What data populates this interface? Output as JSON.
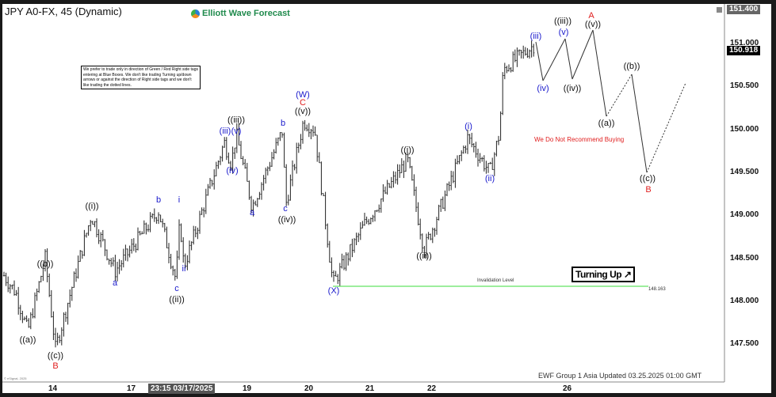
{
  "header": {
    "title": "JPY A0-FX, 45 (Dynamic)",
    "logo_text": "Elliott Wave Forecast"
  },
  "note": "We prefer to trade only in direction of Green / Red Right side tags entering at Blue Boxes. We don't like trading Turning up/down arrows or against the direction of Right side tags and we don't like trading the dotted lines.",
  "footer": {
    "updated": "EWF Group 1 Asia Updated 03.25.2025 01:00 GMT",
    "copyright": "© eSignal, 2025"
  },
  "annotations": {
    "turning_up": "Turning Up ↗",
    "invalidation_label": "Invalidation Level",
    "invalidation_value": "148.163",
    "no_buy": "We Do Not Recommend Buying"
  },
  "colors": {
    "blue": "#1a1acc",
    "black": "#111111",
    "red": "#e02020",
    "invalidation": "#7de87d",
    "price_tag": "#000000",
    "top_tag": "#666666"
  },
  "chart_data": {
    "type": "line",
    "title": "JPY A0-FX, 45 (Dynamic)",
    "y_ticks": [
      "151.000",
      "150.500",
      "150.000",
      "149.500",
      "149.000",
      "148.500",
      "148.000",
      "147.500"
    ],
    "ylim": [
      147.2,
      151.45
    ],
    "x_ticks": [
      "14",
      "17",
      "19",
      "20",
      "21",
      "22",
      "26"
    ],
    "x_cursor_label": "23:15 03/17/2025",
    "last_price": "150.918",
    "top_price": "151.400",
    "invalidation_level": 148.163,
    "pivots": [
      {
        "label": "((a))",
        "price": 147.7,
        "color": "black"
      },
      {
        "label": "((b))",
        "price": 148.5,
        "color": "black"
      },
      {
        "label": "((c))",
        "price": 147.45,
        "color": "black",
        "degree": "B"
      },
      {
        "label": "((i))",
        "price": 149.0,
        "color": "black"
      },
      {
        "label": "a",
        "price": 148.35,
        "color": "blue"
      },
      {
        "label": "b",
        "price": 149.05,
        "color": "blue"
      },
      {
        "label": "c",
        "price": 148.25,
        "color": "blue",
        "degree": "((ii))"
      },
      {
        "label": "i",
        "price": 149.0,
        "color": "blue"
      },
      {
        "label": "ii",
        "price": 148.35,
        "color": "blue"
      },
      {
        "label": "iii",
        "price": 149.85,
        "color": "blue"
      },
      {
        "label": "iv",
        "price": 149.6,
        "color": "blue"
      },
      {
        "label": "v",
        "price": 149.95,
        "color": "blue",
        "degree": "((iii))"
      },
      {
        "label": "a",
        "price": 149.1,
        "color": "blue"
      },
      {
        "label": "b",
        "price": 150.0,
        "color": "blue"
      },
      {
        "label": "c",
        "price": 149.1,
        "color": "blue",
        "degree": "((iv))"
      },
      {
        "label": "((v))",
        "price": 150.1,
        "color": "black",
        "degree": "C / (W)"
      },
      {
        "label": "(X)",
        "price": 148.2,
        "color": "blue"
      },
      {
        "label": "((i))",
        "price": 149.65,
        "color": "black"
      },
      {
        "label": "((ii))",
        "price": 148.6,
        "color": "black"
      },
      {
        "label": "(i)",
        "price": 149.9,
        "color": "blue"
      },
      {
        "label": "(ii)",
        "price": 149.5,
        "color": "blue"
      },
      {
        "label": "(iii)",
        "price": 151.05,
        "color": "blue"
      },
      {
        "label": "(iv)",
        "price": 150.6,
        "color": "blue",
        "projected": true
      },
      {
        "label": "(v)",
        "price": 151.05,
        "color": "blue",
        "projected": true,
        "degree": "((iii))"
      },
      {
        "label": "((iv))",
        "price": 150.6,
        "color": "black",
        "projected": true
      },
      {
        "label": "((v))",
        "price": 151.15,
        "color": "black",
        "projected": true,
        "degree": "A"
      },
      {
        "label": "((a))",
        "price": 150.15,
        "color": "black",
        "projected": true
      },
      {
        "label": "((b))",
        "price": 150.65,
        "color": "black",
        "projected": true
      },
      {
        "label": "((c))",
        "price": 149.5,
        "color": "black",
        "projected": true,
        "degree": "B"
      }
    ]
  },
  "labels": [
    "((a))",
    "((b))",
    "((c))",
    "B",
    "((i))",
    "a",
    "b",
    "c",
    "((ii))",
    "i",
    "ii",
    "(iii)",
    "(v)",
    "((iii))",
    "(iv)",
    "a",
    "b",
    "c",
    "((iv))",
    "(W)",
    "C",
    "((v))",
    "(X)",
    "((i))",
    "((ii))",
    "(i)",
    "(ii)",
    "(iii)",
    "(iv)",
    "(v)",
    "((iii))",
    "((iv))",
    "A",
    "((v))",
    "((a))",
    "((b))",
    "((c))",
    "B"
  ]
}
